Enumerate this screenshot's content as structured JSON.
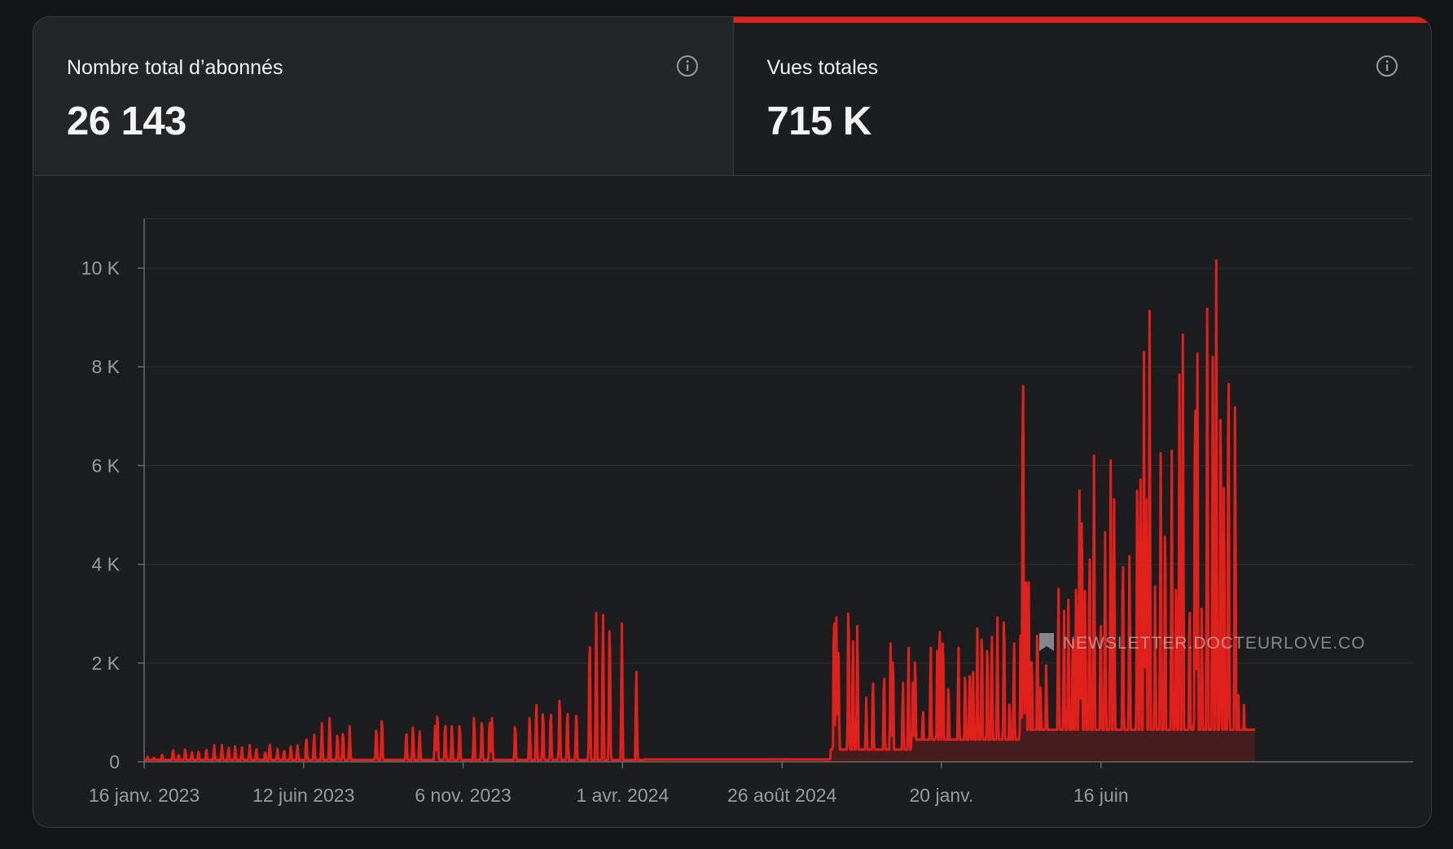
{
  "colors": {
    "accent": "#e0201a",
    "bg": "#1c1d1f",
    "grid": "#2e2f31"
  },
  "tabs": [
    {
      "label": "Nombre total d’abonnés",
      "value": "26 143"
    },
    {
      "label": "Vues totales",
      "value": "715 K"
    }
  ],
  "watermark": "NEWSLETTER.DOCTEURLOVE.CO",
  "chart_data": {
    "type": "area",
    "title": "",
    "ylabel": "",
    "ylim": [
      0,
      11000
    ],
    "xlim": [
      0,
      1000
    ],
    "grid": true,
    "y_ticks": [
      {
        "v": 0,
        "label": "0"
      },
      {
        "v": 2000,
        "label": "2 K"
      },
      {
        "v": 4000,
        "label": "4 K"
      },
      {
        "v": 6000,
        "label": "6 K"
      },
      {
        "v": 8000,
        "label": "8 K"
      },
      {
        "v": 10000,
        "label": "10 K"
      }
    ],
    "x_ticks": [
      {
        "v": 0,
        "label": "16 janv. 2023"
      },
      {
        "v": 143.5,
        "label": "12 juin 2023"
      },
      {
        "v": 287.1,
        "label": "6 nov. 2023"
      },
      {
        "v": 430.6,
        "label": "1 avr. 2024"
      },
      {
        "v": 574.2,
        "label": "26 août 2024"
      },
      {
        "v": 717.7,
        "label": "20 janv."
      },
      {
        "v": 861.3,
        "label": "16 juin"
      }
    ],
    "peaks": [
      [
        3,
        120
      ],
      [
        9,
        100
      ],
      [
        16,
        180
      ],
      [
        26,
        300
      ],
      [
        31,
        170
      ],
      [
        37,
        280
      ],
      [
        43,
        220
      ],
      [
        49,
        260
      ],
      [
        56,
        310
      ],
      [
        63,
        380
      ],
      [
        70,
        340
      ],
      [
        76,
        360
      ],
      [
        82,
        350
      ],
      [
        88,
        330
      ],
      [
        95,
        340
      ],
      [
        101,
        330
      ],
      [
        109,
        240
      ],
      [
        113,
        390
      ],
      [
        120,
        260
      ],
      [
        126,
        280
      ],
      [
        132,
        350
      ],
      [
        138,
        380
      ],
      [
        146,
        580
      ],
      [
        153,
        620
      ],
      [
        160,
        780
      ],
      [
        167,
        1000
      ],
      [
        174,
        680
      ],
      [
        179,
        730
      ],
      [
        185,
        720
      ],
      [
        209,
        810
      ],
      [
        214,
        1060
      ],
      [
        236,
        720
      ],
      [
        242,
        780
      ],
      [
        248,
        690
      ],
      [
        262,
        820
      ],
      [
        264,
        1180
      ],
      [
        271,
        940
      ],
      [
        277,
        810
      ],
      [
        284,
        930
      ],
      [
        297,
        1000
      ],
      [
        304,
        1010
      ],
      [
        311,
        1020
      ],
      [
        313,
        1000
      ],
      [
        334,
        900
      ],
      [
        347,
        1000
      ],
      [
        353,
        1300
      ],
      [
        359,
        1240
      ],
      [
        366,
        1230
      ],
      [
        374,
        1600
      ],
      [
        381,
        1250
      ],
      [
        389,
        1200
      ],
      [
        401,
        3000
      ],
      [
        407,
        3400
      ],
      [
        413,
        3350
      ],
      [
        419,
        3420
      ],
      [
        430,
        2800
      ],
      [
        443,
        2050
      ],
      [
        621,
        3620
      ],
      [
        623,
        3300
      ],
      [
        625,
        2200
      ],
      [
        634,
        3880
      ],
      [
        638,
        2750
      ],
      [
        642,
        3100
      ],
      [
        650,
        1300
      ],
      [
        656,
        2050
      ],
      [
        666,
        2170
      ],
      [
        672,
        2700
      ],
      [
        674,
        2600
      ],
      [
        683,
        1800
      ],
      [
        688,
        2600
      ],
      [
        692,
        1800
      ],
      [
        694,
        2600
      ],
      [
        701,
        1300
      ],
      [
        708,
        2600
      ],
      [
        714,
        2900
      ],
      [
        716,
        3400
      ],
      [
        719,
        3100
      ],
      [
        724,
        1900
      ],
      [
        733,
        2600
      ],
      [
        739,
        2200
      ],
      [
        743,
        1950
      ],
      [
        746,
        2350
      ],
      [
        750,
        2700
      ],
      [
        754,
        3200
      ],
      [
        759,
        2900
      ],
      [
        763,
        2850
      ],
      [
        768,
        3300
      ],
      [
        774,
        3650
      ],
      [
        779,
        1500
      ],
      [
        783,
        2700
      ],
      [
        789,
        3300
      ],
      [
        793,
        1800
      ],
      [
        799,
        2600
      ],
      [
        804,
        3100
      ],
      [
        807,
        1700
      ],
      [
        812,
        2200
      ],
      [
        791,
        9850
      ],
      [
        794,
        4700
      ],
      [
        796,
        4700
      ],
      [
        804,
        3300
      ],
      [
        823,
        3950
      ],
      [
        828,
        3450
      ],
      [
        832,
        3700
      ],
      [
        836,
        3200
      ],
      [
        839,
        4500
      ],
      [
        842,
        6200
      ],
      [
        844,
        6250
      ],
      [
        847,
        3900
      ],
      [
        851,
        5300
      ],
      [
        855,
        6200
      ],
      [
        861,
        3550
      ],
      [
        865,
        4650
      ],
      [
        870,
        6100
      ],
      [
        873,
        6000
      ],
      [
        881,
        5100
      ],
      [
        887,
        4700
      ],
      [
        894,
        7100
      ],
      [
        897,
        6450
      ],
      [
        900,
        8300
      ],
      [
        902,
        6000
      ],
      [
        905,
        9130
      ],
      [
        910,
        3550
      ],
      [
        915,
        6250
      ],
      [
        919,
        5900
      ],
      [
        925,
        6300
      ],
      [
        929,
        4500
      ],
      [
        932,
        8850
      ],
      [
        935,
        8650
      ],
      [
        941,
        3900
      ],
      [
        946,
        9200
      ],
      [
        948,
        9330
      ],
      [
        952,
        3500
      ],
      [
        957,
        10350
      ],
      [
        962,
        9250
      ],
      [
        965,
        10150
      ],
      [
        969,
        8950
      ],
      [
        972,
        6250
      ],
      [
        976,
        9900
      ],
      [
        982,
        8100
      ],
      [
        985,
        1350
      ],
      [
        990,
        1150
      ],
      [
        996,
        750
      ],
      [
        999,
        250
      ]
    ],
    "baseline_segments": [
      {
        "x0": 0,
        "x1": 450,
        "v": 40
      },
      {
        "x0": 450,
        "x1": 618,
        "v": 50
      },
      {
        "x0": 618,
        "x1": 690,
        "v": 250
      },
      {
        "x0": 690,
        "x1": 790,
        "v": 450
      },
      {
        "x0": 790,
        "x1": 1000,
        "v": 650
      }
    ]
  }
}
